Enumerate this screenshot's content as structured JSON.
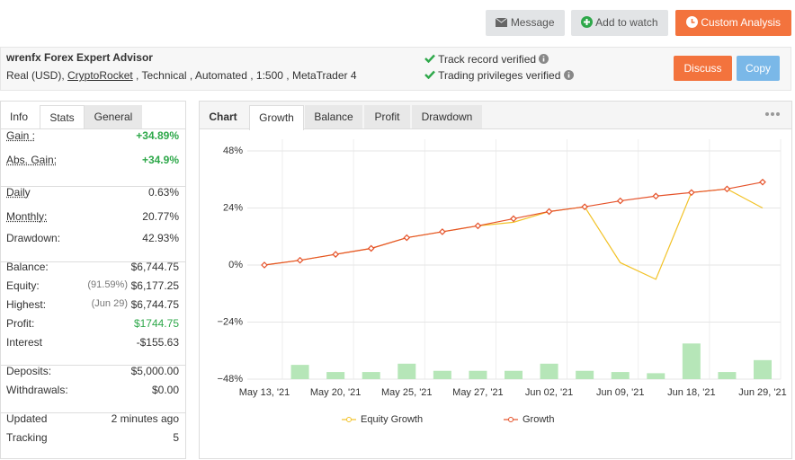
{
  "top_buttons": [
    "Message",
    "Add to watch",
    "Custom Analysis"
  ],
  "header": {
    "title": "wrenfx Forex Expert Advisor",
    "details": [
      "Real (USD), ",
      "CryptoRocket",
      " , Technical , Automated , 1:500 , MetaTrader 4"
    ],
    "verified": [
      "Track record verified",
      "Trading privileges verified"
    ],
    "buttons": [
      "Discuss",
      "Copy"
    ]
  },
  "stats": {
    "tabs": [
      "Info",
      "Stats",
      "General"
    ],
    "groups": [
      [
        {
          "label": "Gain :",
          "value": "+34.89%"
        },
        {
          "label": "Abs. Gain:",
          "value": "+34.9%"
        }
      ],
      [
        {
          "label": "Daily",
          "value": "0.63%"
        },
        {
          "label": "Monthly:",
          "value": "20.77%"
        },
        {
          "label": "Drawdown:",
          "value": "42.93%"
        }
      ],
      [
        {
          "label": "Balance:",
          "value": "$6,744.75"
        },
        {
          "label": "Equity:",
          "note": "(91.59%)",
          "value": "$6,177.25"
        },
        {
          "label": "Highest:",
          "note": "(Jun 29)",
          "value": "$6,744.75"
        },
        {
          "label": "Profit:",
          "value": "$1744.75"
        },
        {
          "label": "Interest",
          "value": "-$155.63"
        }
      ],
      [
        {
          "label": "Deposits:",
          "value": "$5,000.00"
        },
        {
          "label": "Withdrawals:",
          "value": "$0.00"
        }
      ],
      [
        {
          "label": "Updated",
          "value": "2 minutes ago"
        },
        {
          "label": "Tracking",
          "value": "5"
        }
      ]
    ]
  },
  "chart_tabs": [
    "Chart",
    "Growth",
    "Balance",
    "Profit",
    "Drawdown"
  ],
  "chart_data": {
    "type": "line",
    "categories": [
      "May 13, '21",
      null,
      "May 20, '21",
      null,
      "May 25, '21",
      null,
      "May 27, '21",
      null,
      "Jun 02, '21",
      null,
      "Jun 09, '21",
      null,
      "Jun 18, '21",
      null,
      "Jun 29, '21"
    ],
    "series": [
      {
        "name": "Equity Growth",
        "color": "#f2c227",
        "values": [
          0,
          2,
          4.5,
          7,
          11.5,
          14,
          16.5,
          18,
          22.5,
          24.5,
          1,
          -6,
          30.5,
          32,
          24
        ]
      },
      {
        "name": "Growth",
        "color": "#e5522a",
        "values": [
          0,
          2,
          4.5,
          7,
          11.5,
          14,
          16.5,
          19.5,
          22.5,
          24.5,
          27,
          29,
          30.5,
          32,
          34.89
        ]
      },
      {
        "type": "bar",
        "color": "#b6e6b8",
        "values": [
          null,
          -42,
          -45,
          -45,
          -41.5,
          -44.5,
          -44.5,
          -44.5,
          -41.5,
          -44.5,
          -45,
          -45.5,
          -33,
          -45,
          -40
        ]
      }
    ],
    "ylim": [
      -48,
      48
    ],
    "yticks": [
      {
        "value": 48,
        "label": "48%"
      },
      {
        "value": 24,
        "label": "24%"
      },
      {
        "value": 0,
        "label": "0%"
      },
      {
        "value": -24,
        "label": "−24%"
      },
      {
        "value": -48,
        "label": "−48%"
      }
    ],
    "grid": true
  }
}
